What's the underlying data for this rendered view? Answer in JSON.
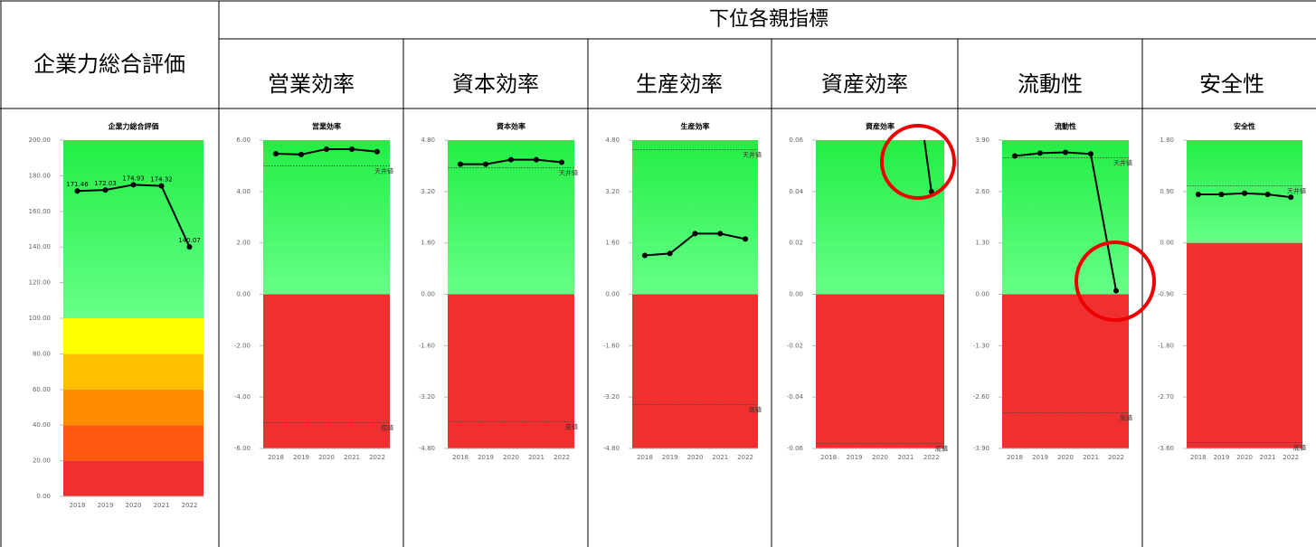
{
  "table": {
    "overall": "企業力総合評価",
    "group": "下位各親指標",
    "columns": [
      "営業効率",
      "資本効率",
      "生産効率",
      "資産効率",
      "流動性",
      "安全性"
    ]
  },
  "chart_data": [
    {
      "type": "line",
      "title": "企業力総合評価",
      "categories": [
        "2018",
        "2019",
        "2020",
        "2021",
        "2022"
      ],
      "values": [
        171.46,
        172.03,
        174.93,
        174.32,
        140.07
      ],
      "value_labels": [
        "171.46",
        "172.03",
        "174.93",
        "174.32",
        "140.07"
      ],
      "color": "#000000",
      "ylim": [
        0,
        200
      ],
      "yticks": [
        {
          "value": 0,
          "label": "0.00"
        },
        {
          "value": 20,
          "label": "20.00"
        },
        {
          "value": 40,
          "label": "40.00"
        },
        {
          "value": 60,
          "label": "60.00"
        },
        {
          "value": 80,
          "label": "80.00"
        },
        {
          "value": 100,
          "label": "100.00"
        },
        {
          "value": 120,
          "label": "120.00"
        },
        {
          "value": 140,
          "label": "140.00"
        },
        {
          "value": 160,
          "label": "160.00"
        },
        {
          "value": 180,
          "label": "180.00"
        },
        {
          "value": 200,
          "label": "200.00"
        }
      ],
      "bands": [
        {
          "from": 0,
          "to": 20,
          "color": "#f03030"
        },
        {
          "from": 20,
          "to": 40,
          "color": "#ff5a10"
        },
        {
          "from": 40,
          "to": 60,
          "color": "#ff8c00"
        },
        {
          "from": 60,
          "to": 80,
          "color": "#ffbf00"
        },
        {
          "from": 80,
          "to": 100,
          "color": "#ffff00"
        },
        {
          "from": 100,
          "to": 200,
          "color": "#22ee44",
          "color2": "#66ff88"
        }
      ],
      "grid": false
    },
    {
      "type": "line",
      "title": "営業効率",
      "categories": [
        "2018",
        "2019",
        "2020",
        "2021",
        "2022"
      ],
      "values": [
        5.47,
        5.44,
        5.65,
        5.65,
        5.55
      ],
      "color": "#000000",
      "ylim": [
        -6,
        6
      ],
      "yticks": [
        {
          "value": -6,
          "label": "-6.00"
        },
        {
          "value": -4,
          "label": "-4.00"
        },
        {
          "value": -2,
          "label": "-2.00"
        },
        {
          "value": 0,
          "label": "0.00"
        },
        {
          "value": 2,
          "label": "2.00"
        },
        {
          "value": 4,
          "label": "4.00"
        },
        {
          "value": 6,
          "label": "6.00"
        }
      ],
      "bands": [
        {
          "from": -6,
          "to": 0,
          "color": "#f03030"
        },
        {
          "from": 0,
          "to": 6,
          "color": "#22ee44",
          "color2": "#66ff88"
        }
      ],
      "ceiling": {
        "value": 5,
        "label": "天井値"
      },
      "floor": {
        "value": -5,
        "label": "底値"
      },
      "grid": false
    },
    {
      "type": "line",
      "title": "資本効率",
      "categories": [
        "2018",
        "2019",
        "2020",
        "2021",
        "2022"
      ],
      "values": [
        4.05,
        4.05,
        4.19,
        4.19,
        4.11
      ],
      "color": "#000000",
      "ylim": [
        -4.8,
        4.8
      ],
      "yticks": [
        {
          "value": -4.8,
          "label": "-4.80"
        },
        {
          "value": -3.2,
          "label": "-3.20"
        },
        {
          "value": -1.6,
          "label": "-1.60"
        },
        {
          "value": 0,
          "label": "0.00"
        },
        {
          "value": 1.6,
          "label": "1.60"
        },
        {
          "value": 3.2,
          "label": "3.20"
        },
        {
          "value": 4.8,
          "label": "4.80"
        }
      ],
      "bands": [
        {
          "from": -4.8,
          "to": 0,
          "color": "#f03030"
        },
        {
          "from": 0,
          "to": 4.8,
          "color": "#22ee44",
          "color2": "#66ff88"
        }
      ],
      "ceiling": {
        "value": 3.94,
        "label": "天井値"
      },
      "floor": {
        "value": -3.97,
        "label": "底値"
      },
      "grid": false
    },
    {
      "type": "line",
      "title": "生産効率",
      "categories": [
        "2018",
        "2019",
        "2020",
        "2021",
        "2022"
      ],
      "values": [
        1.21,
        1.27,
        1.89,
        1.89,
        1.72
      ],
      "color": "#000000",
      "ylim": [
        -4.8,
        4.8
      ],
      "yticks": [
        {
          "value": -4.8,
          "label": "-4.80"
        },
        {
          "value": -3.2,
          "label": "-3.20"
        },
        {
          "value": -1.6,
          "label": "-1.60"
        },
        {
          "value": 0,
          "label": "0.00"
        },
        {
          "value": 1.6,
          "label": "1.60"
        },
        {
          "value": 3.2,
          "label": "3.20"
        },
        {
          "value": 4.8,
          "label": "4.80"
        }
      ],
      "bands": [
        {
          "from": -4.8,
          "to": 0,
          "color": "#f03030"
        },
        {
          "from": 0,
          "to": 4.8,
          "color": "#22ee44",
          "color2": "#66ff88"
        }
      ],
      "ceiling": {
        "value": 4.5,
        "label": "天井値"
      },
      "floor": {
        "value": -3.43,
        "label": "底値"
      },
      "grid": false
    },
    {
      "type": "line",
      "title": "資産効率",
      "categories": [
        "2018",
        "2019",
        "2020",
        "2021",
        "2022"
      ],
      "values": [
        null,
        null,
        null,
        0.113,
        0.04
      ],
      "color": "#000000",
      "ylim": [
        -0.06,
        0.06
      ],
      "yticks": [
        {
          "value": -0.06,
          "label": "-0.06"
        },
        {
          "value": -0.04,
          "label": "-0.04"
        },
        {
          "value": -0.02,
          "label": "-0.02"
        },
        {
          "value": 0,
          "label": "0.00"
        },
        {
          "value": 0.02,
          "label": "0.02"
        },
        {
          "value": 0.04,
          "label": "0.04"
        },
        {
          "value": 0.06,
          "label": "0.06"
        }
      ],
      "bands": [
        {
          "from": -0.06,
          "to": 0,
          "color": "#f03030"
        },
        {
          "from": 0,
          "to": 0.06,
          "color": "#22ee44",
          "color2": "#66ff88"
        }
      ],
      "floor": {
        "value": -0.058,
        "label": "底値"
      },
      "grid": false
    },
    {
      "type": "line",
      "title": "流動性",
      "categories": [
        "2018",
        "2019",
        "2020",
        "2021",
        "2022"
      ],
      "values": [
        3.5,
        3.57,
        3.59,
        3.55,
        0.09
      ],
      "color": "#000000",
      "ylim": [
        -3.9,
        3.9
      ],
      "yticks": [
        {
          "value": -3.9,
          "label": "-3.90"
        },
        {
          "value": -2.6,
          "label": "-2.60"
        },
        {
          "value": -1.3,
          "label": "-1.30"
        },
        {
          "value": 0,
          "label": "0.00"
        },
        {
          "value": 1.3,
          "label": "1.30"
        },
        {
          "value": 2.6,
          "label": "2.60"
        },
        {
          "value": 3.9,
          "label": "3.90"
        }
      ],
      "bands": [
        {
          "from": -3.9,
          "to": 0,
          "color": "#f03030"
        },
        {
          "from": 0,
          "to": 3.9,
          "color": "#22ee44",
          "color2": "#66ff88"
        }
      ],
      "ceiling": {
        "value": 3.45,
        "label": "天井値"
      },
      "floor": {
        "value": -3,
        "label": "底値"
      },
      "grid": false
    },
    {
      "type": "line",
      "title": "安全性",
      "categories": [
        "2018",
        "2019",
        "2020",
        "2021",
        "2022"
      ],
      "values": [
        0.85,
        0.85,
        0.87,
        0.85,
        0.8
      ],
      "color": "#000000",
      "ylim": [
        -3.6,
        1.8
      ],
      "yticks": [
        {
          "value": -3.6,
          "label": "-3.60"
        },
        {
          "value": -2.7,
          "label": "-2.70"
        },
        {
          "value": -1.8,
          "label": "-1.80"
        },
        {
          "value": -0.9,
          "label": "-0.90"
        },
        {
          "value": 0,
          "label": "0.00"
        },
        {
          "value": 0.9,
          "label": "0.90"
        },
        {
          "value": 1.8,
          "label": "1.80"
        }
      ],
      "bands": [
        {
          "from": -3.6,
          "to": 0,
          "color": "#f03030"
        },
        {
          "from": 0,
          "to": 1.8,
          "color": "#22ee44",
          "color2": "#66ff88"
        }
      ],
      "ceiling": {
        "value": 1,
        "label": "天井値"
      },
      "floor": {
        "value": -3.5,
        "label": "底値"
      },
      "grid": false
    }
  ]
}
